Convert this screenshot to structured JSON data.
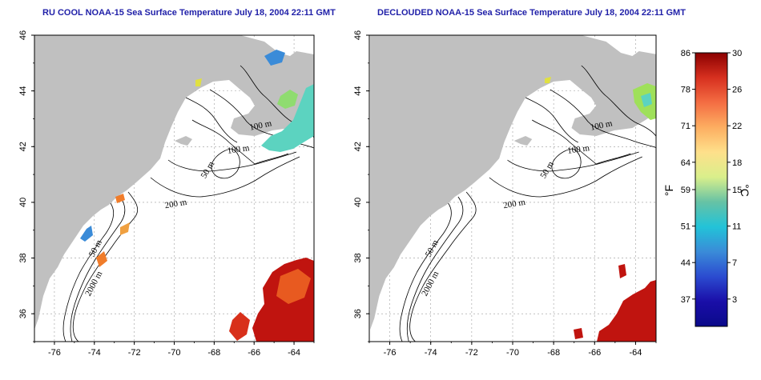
{
  "maps": [
    {
      "title": "RU COOL NOAA-15 Sea Surface Temperature July 18, 2004 22:11 GMT",
      "contour_labels": [
        "100 m",
        "100 m",
        "50 m",
        "200 m",
        "50 m",
        "2000 m"
      ]
    },
    {
      "title": "DECLOUDED NOAA-15 Sea Surface Temperature July 18, 2004 22:11 GMT",
      "contour_labels": [
        "100 m",
        "100 m",
        "50 m",
        "200 m",
        "50 m",
        "2000 m"
      ]
    }
  ],
  "axes": {
    "x_ticks": [
      "-76",
      "-74",
      "-72",
      "-70",
      "-68",
      "-66",
      "-64"
    ],
    "y_ticks": [
      "36",
      "38",
      "40",
      "42",
      "44",
      "46"
    ],
    "lon_range": [
      -77,
      -63
    ],
    "lat_range": [
      35,
      46
    ]
  },
  "colorbar": {
    "fahrenheit_ticks": [
      "86",
      "78",
      "71",
      "64",
      "59",
      "51",
      "44",
      "37"
    ],
    "celsius_ticks": [
      "30",
      "26",
      "22",
      "18",
      "15",
      "11",
      "7",
      "3"
    ],
    "fahrenheit_unit": "°F",
    "celsius_unit": "°C",
    "range_c": [
      0,
      30
    ],
    "colors": [
      "#8b0000",
      "#d7301f",
      "#f46d43",
      "#fdae61",
      "#fee08b",
      "#d9ef8b",
      "#66c2a5",
      "#22c3d8",
      "#3a8bd8",
      "#2b4bd0",
      "#1a0ea8",
      "#0a0a8a"
    ]
  },
  "colors": {
    "land": "#c0c0c0",
    "title": "#1f1fa8",
    "grid": "#999999"
  }
}
